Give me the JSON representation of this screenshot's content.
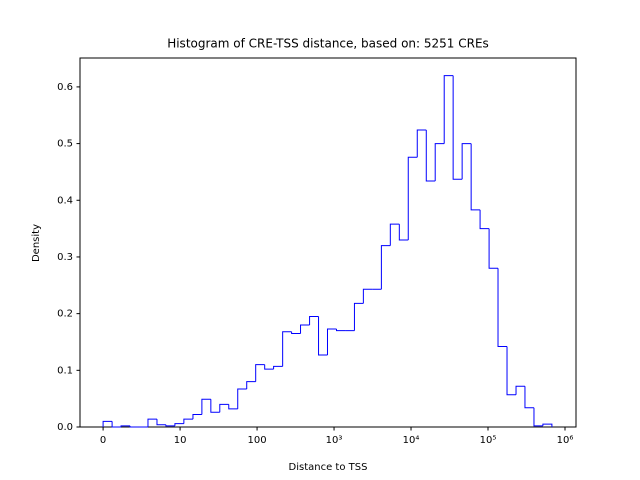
{
  "chart_data": {
    "type": "histogram",
    "title": "Histogram of CRE-TSS distance, based on: 5251 CREs",
    "xlabel": "Distance to TSS",
    "ylabel": "Density",
    "xscale": "symlog",
    "linthresh": 10,
    "bins": [
      0,
      1.17,
      2.33,
      3.5,
      4.66,
      5.83,
      7.0,
      8.16,
      9.33,
      11.2,
      14.7,
      19.2,
      25.1,
      32.8,
      42.9,
      56.1,
      73.4,
      96,
      125.6,
      164,
      215,
      281,
      367,
      481,
      629,
      822,
      1076,
      1406,
      1841,
      2404,
      3148,
      4121,
      5383,
      7047,
      9204,
      12050,
      15780,
      20610,
      26980,
      35240,
      46130,
      60390,
      78890,
      103300,
      134900,
      176600,
      231200,
      302000,
      395400,
      516400,
      676100
    ],
    "values": [
      0.01,
      0,
      0.002,
      0,
      0,
      0.014,
      0.004,
      0.002,
      0.006,
      0.014,
      0.022,
      0.049,
      0.026,
      0.04,
      0.032,
      0.067,
      0.08,
      0.11,
      0.102,
      0.107,
      0.168,
      0.165,
      0.18,
      0.195,
      0.127,
      0.173,
      0.17,
      0.17,
      0.218,
      0.243,
      0.243,
      0.32,
      0.358,
      0.33,
      0.476,
      0.524,
      0.434,
      0.5,
      0.62,
      0.437,
      0.5,
      0.383,
      0.35,
      0.28,
      0.142,
      0.057,
      0.072,
      0.034,
      0.002,
      0.005
    ],
    "color": "#0000ff",
    "xlim": [
      -3,
      1390000
    ],
    "ylim": [
      0,
      0.651
    ],
    "xticks": [
      0,
      10,
      100,
      {
        "value": 1000,
        "label": "10³"
      },
      {
        "value": 10000,
        "label": "10⁴"
      },
      {
        "value": 100000,
        "label": "10⁵"
      },
      {
        "value": 1000000,
        "label": "10⁶"
      }
    ],
    "yticks": [
      {
        "value": 0,
        "label": "0.0"
      },
      0.1,
      0.2,
      0.3,
      0.4,
      0.5,
      0.6
    ]
  }
}
